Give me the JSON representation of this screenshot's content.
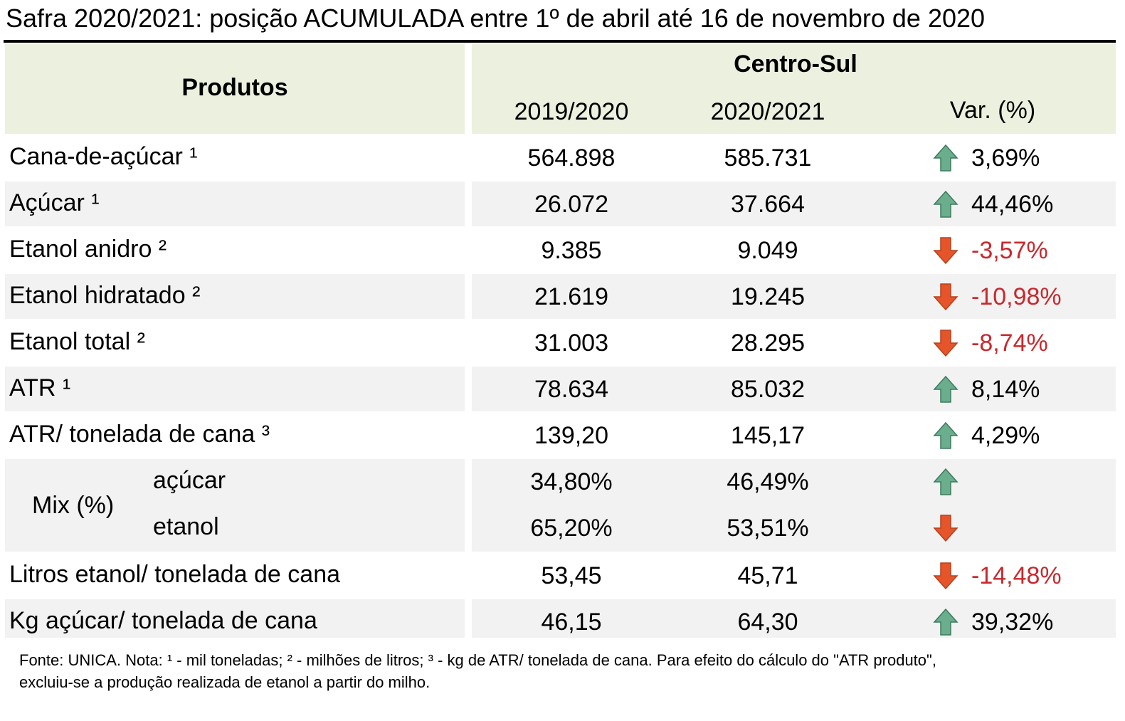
{
  "title": "Safra 2020/2021: posição ACUMULADA entre 1º de abril até 16 de novembro de 2020",
  "table": {
    "header": {
      "products": "Produtos",
      "region": "Centro-Sul",
      "columns": [
        "2019/2020",
        "2020/2021",
        "Var. (%)"
      ]
    },
    "rows": [
      {
        "product": "Cana-de-açúcar ¹",
        "values": [
          "564.898",
          "585.731",
          "3,69%"
        ],
        "trend": "up"
      },
      {
        "product": "Açúcar ¹",
        "values": [
          "26.072",
          "37.664",
          "44,46%"
        ],
        "trend": "up"
      },
      {
        "product": "Etanol anidro ²",
        "values": [
          "9.385",
          "9.049",
          "-3,57%"
        ],
        "trend": "down"
      },
      {
        "product": "Etanol hidratado ²",
        "values": [
          "21.619",
          "19.245",
          "-10,98%"
        ],
        "trend": "down"
      },
      {
        "product": "Etanol total ²",
        "values": [
          "31.003",
          "28.295",
          "-8,74%"
        ],
        "trend": "down"
      },
      {
        "product": "ATR ¹",
        "values": [
          "78.634",
          "85.032",
          "8,14%"
        ],
        "trend": "up"
      },
      {
        "product": "ATR/ tonelada de cana ³",
        "values": [
          "139,20",
          "145,17",
          "4,29%"
        ],
        "trend": "up"
      },
      {
        "product": "Mix (%)",
        "subrows": [
          {
            "product": "açúcar",
            "values": [
              "34,80%",
              "46,49%"
            ],
            "trend": "up"
          },
          {
            "product": "etanol",
            "values": [
              "65,20%",
              "53,51%"
            ],
            "trend": "down"
          }
        ]
      },
      {
        "product": "Litros etanol/ tonelada de cana",
        "values": [
          "53,45",
          "45,71",
          "-14,48%"
        ],
        "trend": "down"
      },
      {
        "product": "Kg açúcar/ tonelada de cana",
        "values": [
          "46,15",
          "64,30",
          "39,32%"
        ],
        "trend": "up"
      }
    ]
  },
  "footnote": [
    "Fonte: UNICA. Nota: ¹ - mil toneladas; ² - milhões de litros; ³ - kg de ATR/ tonelada de cana. Para efeito do cálculo do \"ATR produto\",",
    "excluiu-se a produção realizada de etanol a partir do milho."
  ]
}
